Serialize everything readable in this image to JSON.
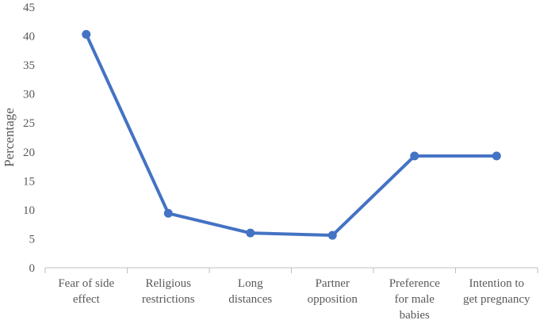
{
  "chart_data": {
    "type": "line",
    "title": "",
    "xlabel": "",
    "ylabel": "Percentage",
    "ylim": [
      0,
      45
    ],
    "yticks": [
      0,
      5,
      10,
      15,
      20,
      25,
      30,
      35,
      40,
      45
    ],
    "grid": false,
    "legend": "none",
    "categories": [
      [
        "Fear of side",
        "effect"
      ],
      [
        "Religious",
        "restrictions"
      ],
      [
        "Long",
        "distances"
      ],
      [
        "Partner",
        "opposition"
      ],
      [
        "Preference",
        "for male",
        "babies"
      ],
      [
        "Intention to",
        "get pregnancy"
      ]
    ],
    "series": [
      {
        "values": [
          40.3,
          9.4,
          6.0,
          5.6,
          19.3,
          19.3
        ],
        "color": "#4472C4"
      }
    ],
    "axis_color": "#BFBFBF",
    "text_color": "#595959"
  }
}
